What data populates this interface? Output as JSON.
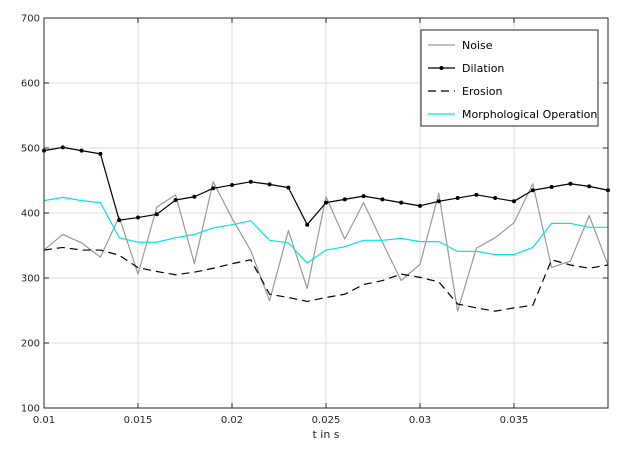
{
  "chart_data": {
    "type": "line",
    "title": "",
    "xlabel": "t in s",
    "ylabel": "",
    "xlim": [
      0.01,
      0.04
    ],
    "ylim": [
      100,
      700
    ],
    "x_ticks": [
      0.01,
      0.015,
      0.02,
      0.025,
      0.03,
      0.035
    ],
    "x_tick_labels": [
      "0.01",
      "0.015",
      "0.02",
      "0.025",
      "0.03",
      "0.035"
    ],
    "y_ticks": [
      100,
      200,
      300,
      400,
      500,
      600,
      700
    ],
    "y_tick_labels": [
      "100",
      "200",
      "300",
      "400",
      "500",
      "600",
      "700"
    ],
    "grid": true,
    "legend_position": "top-right",
    "x": [
      0.01,
      0.011,
      0.012,
      0.013,
      0.014,
      0.015,
      0.016,
      0.017,
      0.018,
      0.019,
      0.02,
      0.021,
      0.022,
      0.023,
      0.024,
      0.025,
      0.026,
      0.027,
      0.028,
      0.029,
      0.03,
      0.031,
      0.032,
      0.033,
      0.034,
      0.035,
      0.036,
      0.037,
      0.038,
      0.039,
      0.04
    ],
    "series": [
      {
        "name": "Noise",
        "color": "#999999",
        "style": "solid",
        "values": [
          343,
          367,
          354,
          332,
          394,
          306,
          409,
          428,
          322,
          448,
          392,
          342,
          265,
          373,
          284,
          425,
          360,
          416,
          355,
          296,
          321,
          430,
          249,
          346,
          362,
          385,
          445,
          316,
          326,
          396,
          320
        ]
      },
      {
        "name": "Dilation",
        "color": "#000000",
        "style": "solid-markers",
        "values": [
          496,
          501,
          496,
          491,
          389,
          393,
          398,
          420,
          425,
          438,
          443,
          448,
          444,
          439,
          382,
          416,
          421,
          426,
          421,
          416,
          411,
          418,
          423,
          428,
          423,
          418,
          435,
          440,
          445,
          441,
          435
        ]
      },
      {
        "name": "Erosion",
        "color": "#000000",
        "style": "dashed",
        "values": [
          343,
          347,
          343,
          343,
          335,
          316,
          310,
          305,
          309,
          315,
          322,
          328,
          275,
          270,
          264,
          270,
          275,
          290,
          296,
          306,
          301,
          294,
          260,
          254,
          249,
          254,
          258,
          328,
          320,
          315,
          320
        ]
      },
      {
        "name": "Morphological Operation",
        "color": "#00e5e5",
        "style": "solid",
        "values": [
          419,
          424,
          419,
          416,
          362,
          355,
          355,
          362,
          367,
          377,
          382,
          388,
          358,
          354,
          323,
          343,
          348,
          358,
          358,
          361,
          356,
          356,
          341,
          341,
          336,
          336,
          347,
          384,
          384,
          378,
          378
        ]
      }
    ]
  }
}
